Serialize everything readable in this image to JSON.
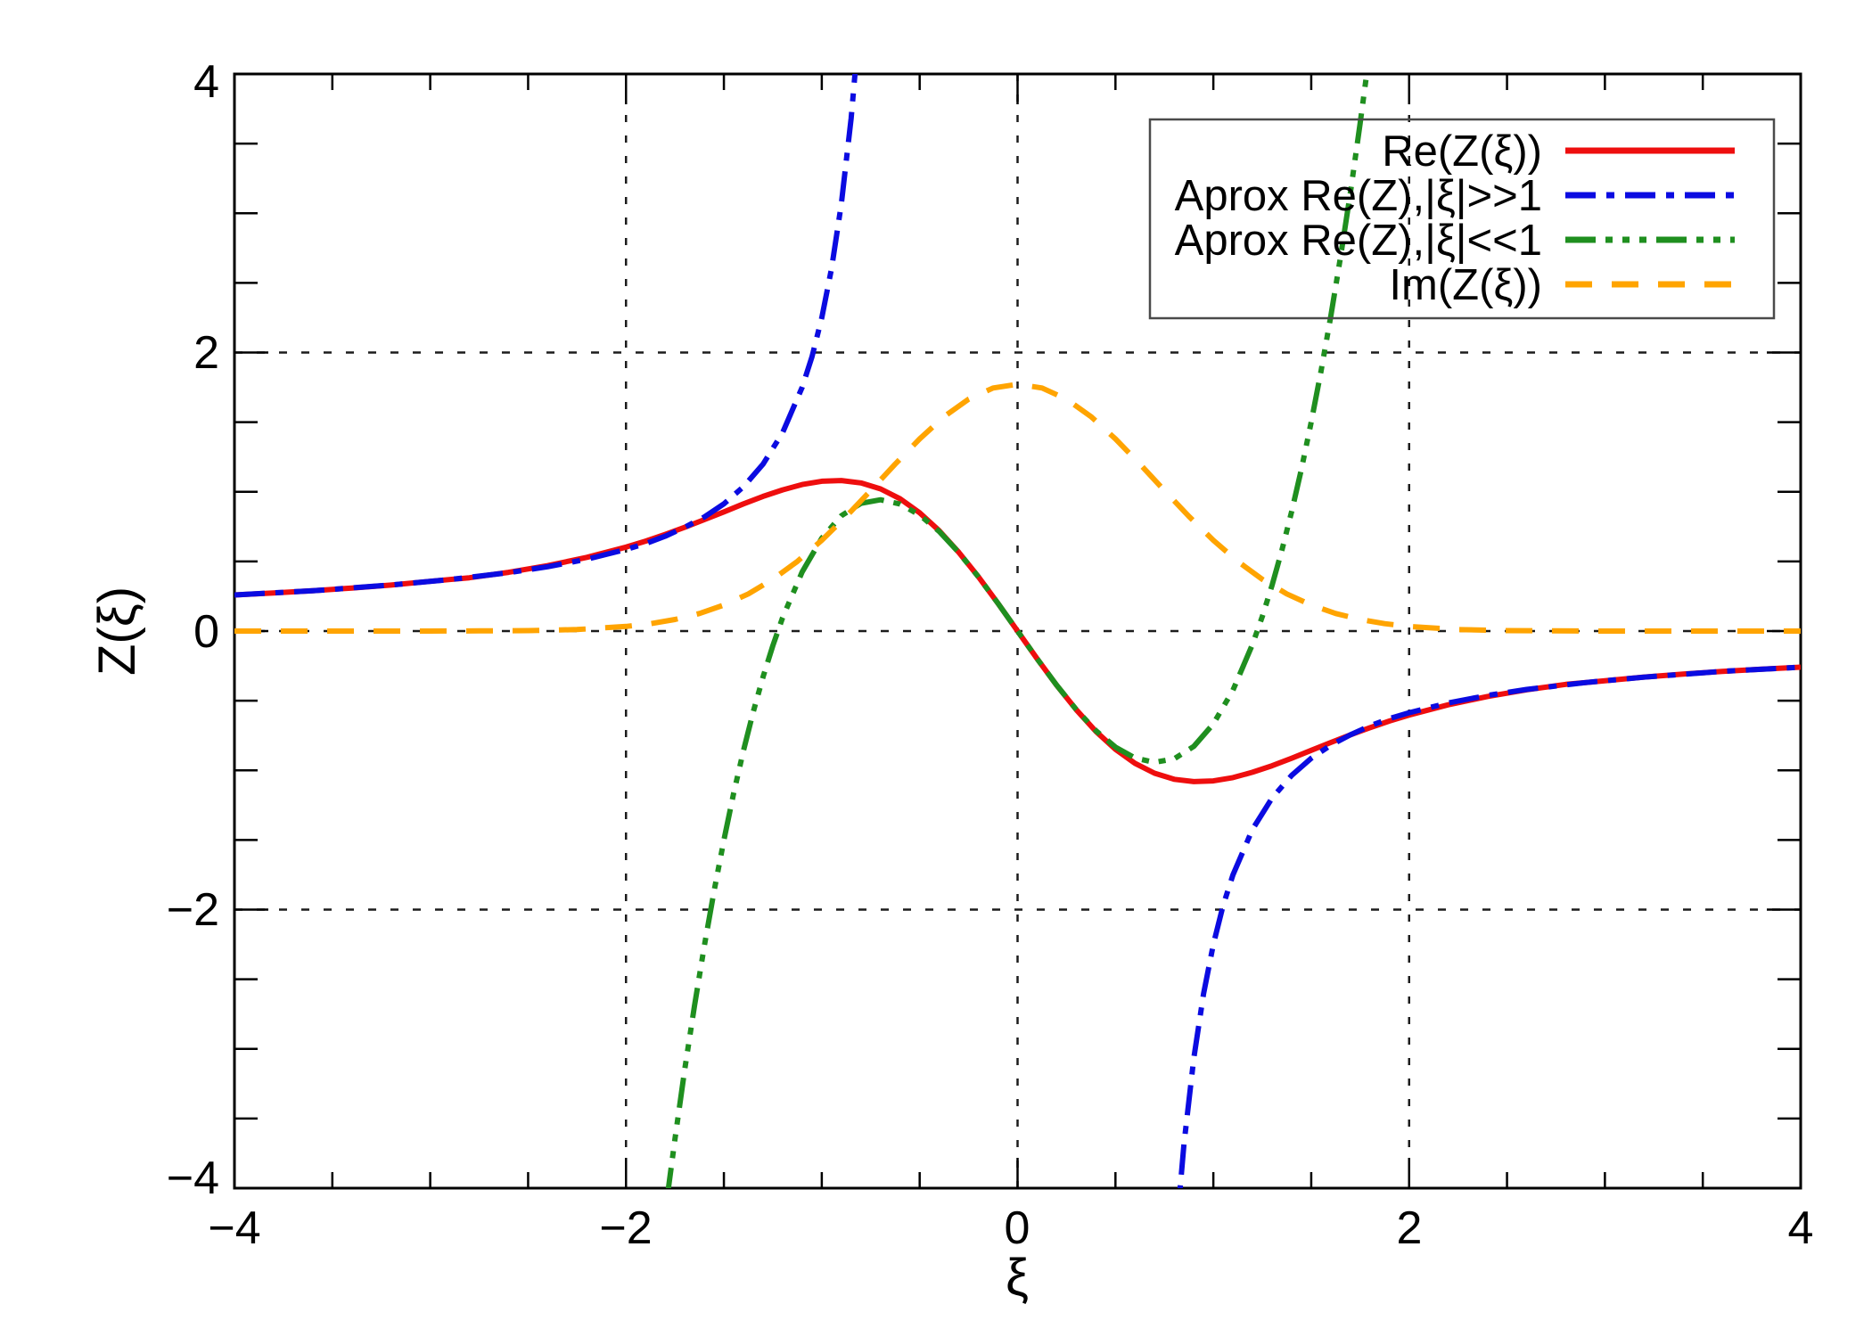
{
  "chart_data": {
    "type": "line",
    "title": "",
    "xlabel": "ξ",
    "ylabel": "Z(ξ)",
    "xlim": [
      -4,
      4
    ],
    "ylim": [
      -4,
      4
    ],
    "x_major_ticks": [
      -4,
      -2,
      0,
      2,
      4
    ],
    "y_major_ticks": [
      -4,
      -2,
      0,
      2,
      4
    ],
    "x_tick_labels": [
      "−4",
      "−2",
      "0",
      "2",
      "4"
    ],
    "y_tick_labels": [
      "−4",
      "−2",
      "0",
      "2",
      "4"
    ],
    "minor_tick_step": 0.5,
    "grid": {
      "style": "dotted",
      "color": "#1c1c1c",
      "at_x": [
        -2,
        0,
        2
      ],
      "at_y": [
        -2,
        0,
        2
      ]
    },
    "frame_color": "#000000",
    "background": "#ffffff",
    "legend": {
      "position": "top-right",
      "border_color": "#4a4a4a",
      "fill": "transparent"
    },
    "series": [
      {
        "name": "Re(Z(ξ))",
        "color": "#ee0e0e",
        "style": "solid",
        "branches": [
          [
            [
              -4,
              0.259
            ],
            [
              -3.8,
              0.273
            ],
            [
              -3.6,
              0.289
            ],
            [
              -3.4,
              0.309
            ],
            [
              -3.2,
              0.33
            ],
            [
              -3,
              0.357
            ],
            [
              -2.8,
              0.383
            ],
            [
              -2.6,
              0.422
            ],
            [
              -2.4,
              0.47
            ],
            [
              -2.2,
              0.529
            ],
            [
              -2,
              0.603
            ],
            [
              -1.9,
              0.646
            ],
            [
              -1.8,
              0.694
            ],
            [
              -1.7,
              0.745
            ],
            [
              -1.6,
              0.8
            ],
            [
              -1.5,
              0.856
            ],
            [
              -1.4,
              0.913
            ],
            [
              -1.3,
              0.967
            ],
            [
              -1.2,
              1.014
            ],
            [
              -1.1,
              1.052
            ],
            [
              -1,
              1.076
            ],
            [
              -0.9,
              1.081
            ],
            [
              -0.8,
              1.064
            ],
            [
              -0.7,
              1.021
            ],
            [
              -0.6,
              0.95
            ],
            [
              -0.5,
              0.849
            ],
            [
              -0.4,
              0.72
            ],
            [
              -0.3,
              0.565
            ],
            [
              -0.2,
              0.39
            ],
            [
              -0.1,
              0.199
            ],
            [
              0,
              0
            ],
            [
              0.1,
              -0.199
            ],
            [
              0.2,
              -0.39
            ],
            [
              0.3,
              -0.565
            ],
            [
              0.4,
              -0.72
            ],
            [
              0.5,
              -0.849
            ],
            [
              0.6,
              -0.95
            ],
            [
              0.7,
              -1.021
            ],
            [
              0.8,
              -1.064
            ],
            [
              0.9,
              -1.081
            ],
            [
              1,
              -1.076
            ],
            [
              1.1,
              -1.052
            ],
            [
              1.2,
              -1.014
            ],
            [
              1.3,
              -0.967
            ],
            [
              1.4,
              -0.913
            ],
            [
              1.5,
              -0.856
            ],
            [
              1.6,
              -0.8
            ],
            [
              1.7,
              -0.745
            ],
            [
              1.8,
              -0.694
            ],
            [
              1.9,
              -0.646
            ],
            [
              2,
              -0.603
            ],
            [
              2.2,
              -0.529
            ],
            [
              2.4,
              -0.47
            ],
            [
              2.6,
              -0.422
            ],
            [
              2.8,
              -0.383
            ],
            [
              3,
              -0.357
            ],
            [
              3.2,
              -0.33
            ],
            [
              3.4,
              -0.309
            ],
            [
              3.6,
              -0.289
            ],
            [
              3.8,
              -0.273
            ],
            [
              4,
              -0.259
            ]
          ]
        ]
      },
      {
        "name": "Aprox Re(Z),|ξ|>>1",
        "color": "#0b0bе1",
        "style": "dash-dot",
        "branches": [
          [
            [
              -4,
              0.259
            ],
            [
              -3.6,
              0.289
            ],
            [
              -3.2,
              0.331
            ],
            [
              -2.9,
              0.37
            ],
            [
              -2.6,
              0.419
            ],
            [
              -2.4,
              0.462
            ],
            [
              -2.2,
              0.516
            ],
            [
              -2,
              0.586
            ],
            [
              -1.9,
              0.628
            ],
            [
              -1.8,
              0.681
            ],
            [
              -1.7,
              0.745
            ],
            [
              -1.6,
              0.819
            ],
            [
              -1.5,
              0.914
            ],
            [
              -1.4,
              1.036
            ],
            [
              -1.3,
              1.199
            ],
            [
              -1.2,
              1.424
            ],
            [
              -1.1,
              1.751
            ],
            [
              -1.05,
              1.97
            ],
            [
              -1,
              2.25
            ],
            [
              -0.95,
              2.606
            ],
            [
              -0.9,
              3.067
            ],
            [
              -0.85,
              3.681
            ],
            [
              -0.81,
              4.33
            ]
          ],
          [
            [
              0.81,
              -4.33
            ],
            [
              0.85,
              -3.681
            ],
            [
              0.9,
              -3.067
            ],
            [
              0.95,
              -2.606
            ],
            [
              1,
              -2.25
            ],
            [
              1.05,
              -1.97
            ],
            [
              1.1,
              -1.751
            ],
            [
              1.2,
              -1.424
            ],
            [
              1.3,
              -1.199
            ],
            [
              1.4,
              -1.036
            ],
            [
              1.5,
              -0.914
            ],
            [
              1.6,
              -0.819
            ],
            [
              1.7,
              -0.745
            ],
            [
              1.8,
              -0.681
            ],
            [
              1.9,
              -0.628
            ],
            [
              2,
              -0.586
            ],
            [
              2.2,
              -0.516
            ],
            [
              2.4,
              -0.462
            ],
            [
              2.6,
              -0.419
            ],
            [
              2.9,
              -0.37
            ],
            [
              3.2,
              -0.331
            ],
            [
              3.6,
              -0.289
            ],
            [
              4,
              -0.259
            ]
          ]
        ]
      },
      {
        "name": "Aprox Re(Z),|ξ|<<1",
        "color": "#1f8f1f",
        "style": "dash-dot-dot-dot",
        "branches": [
          [
            [
              -1.79,
              -4.07
            ],
            [
              -1.75,
              -3.646
            ],
            [
              -1.7,
              -3.149
            ],
            [
              -1.65,
              -2.69
            ],
            [
              -1.6,
              -2.261
            ],
            [
              -1.55,
              -1.865
            ],
            [
              -1.5,
              -1.5
            ],
            [
              -1.45,
              -1.165
            ],
            [
              -1.4,
              -0.859
            ],
            [
              -1.35,
              -0.58
            ],
            [
              -1.3,
              -0.329
            ],
            [
              -1.25,
              -0.104
            ],
            [
              -1.2,
              0.096
            ],
            [
              -1.1,
              0.425
            ],
            [
              -1,
              0.667
            ],
            [
              -0.9,
              0.828
            ],
            [
              -0.8,
              0.917
            ],
            [
              -0.7,
              0.943
            ],
            [
              -0.6,
              0.912
            ],
            [
              -0.5,
              0.833
            ],
            [
              -0.4,
              0.715
            ],
            [
              -0.3,
              0.564
            ],
            [
              -0.2,
              0.389
            ],
            [
              -0.1,
              0.199
            ],
            [
              0,
              0
            ],
            [
              0.1,
              -0.199
            ],
            [
              0.2,
              -0.389
            ],
            [
              0.3,
              -0.564
            ],
            [
              0.4,
              -0.715
            ],
            [
              0.5,
              -0.833
            ],
            [
              0.6,
              -0.912
            ],
            [
              0.7,
              -0.943
            ],
            [
              0.8,
              -0.917
            ],
            [
              0.9,
              -0.828
            ],
            [
              1,
              -0.667
            ],
            [
              1.1,
              -0.425
            ],
            [
              1.2,
              -0.096
            ],
            [
              1.25,
              0.104
            ],
            [
              1.3,
              0.329
            ],
            [
              1.35,
              0.58
            ],
            [
              1.4,
              0.859
            ],
            [
              1.45,
              1.165
            ],
            [
              1.5,
              1.5
            ],
            [
              1.55,
              1.865
            ],
            [
              1.6,
              2.261
            ],
            [
              1.65,
              2.69
            ],
            [
              1.7,
              3.149
            ],
            [
              1.75,
              3.646
            ],
            [
              1.79,
              4.07
            ]
          ]
        ]
      },
      {
        "name": "Im(Z(ξ))",
        "color": "#ffa400",
        "style": "dashed",
        "branches": [
          [
            [
              -4,
              0.0001
            ],
            [
              -3.5,
              0.0001
            ],
            [
              -3,
              0.0002
            ],
            [
              -2.75,
              0.001
            ],
            [
              -2.5,
              0.003
            ],
            [
              -2.25,
              0.011
            ],
            [
              -2,
              0.033
            ],
            [
              -1.875,
              0.053
            ],
            [
              -1.75,
              0.083
            ],
            [
              -1.625,
              0.126
            ],
            [
              -1.5,
              0.187
            ],
            [
              -1.375,
              0.267
            ],
            [
              -1.25,
              0.372
            ],
            [
              -1.125,
              0.5
            ],
            [
              -1,
              0.652
            ],
            [
              -0.875,
              0.824
            ],
            [
              -0.75,
              1.009
            ],
            [
              -0.625,
              1.199
            ],
            [
              -0.5,
              1.38
            ],
            [
              -0.375,
              1.54
            ],
            [
              -0.25,
              1.665
            ],
            [
              -0.125,
              1.745
            ],
            [
              0,
              1.772
            ],
            [
              0.125,
              1.745
            ],
            [
              0.25,
              1.665
            ],
            [
              0.375,
              1.54
            ],
            [
              0.5,
              1.38
            ],
            [
              0.625,
              1.199
            ],
            [
              0.75,
              1.009
            ],
            [
              0.875,
              0.824
            ],
            [
              1,
              0.652
            ],
            [
              1.125,
              0.5
            ],
            [
              1.25,
              0.372
            ],
            [
              1.375,
              0.267
            ],
            [
              1.5,
              0.187
            ],
            [
              1.625,
              0.126
            ],
            [
              1.75,
              0.083
            ],
            [
              1.875,
              0.053
            ],
            [
              2,
              0.033
            ],
            [
              2.25,
              0.011
            ],
            [
              2.5,
              0.003
            ],
            [
              2.75,
              0.001
            ],
            [
              3,
              0.0002
            ],
            [
              3.5,
              0.0001
            ],
            [
              4,
              0.0001
            ]
          ]
        ]
      }
    ]
  }
}
